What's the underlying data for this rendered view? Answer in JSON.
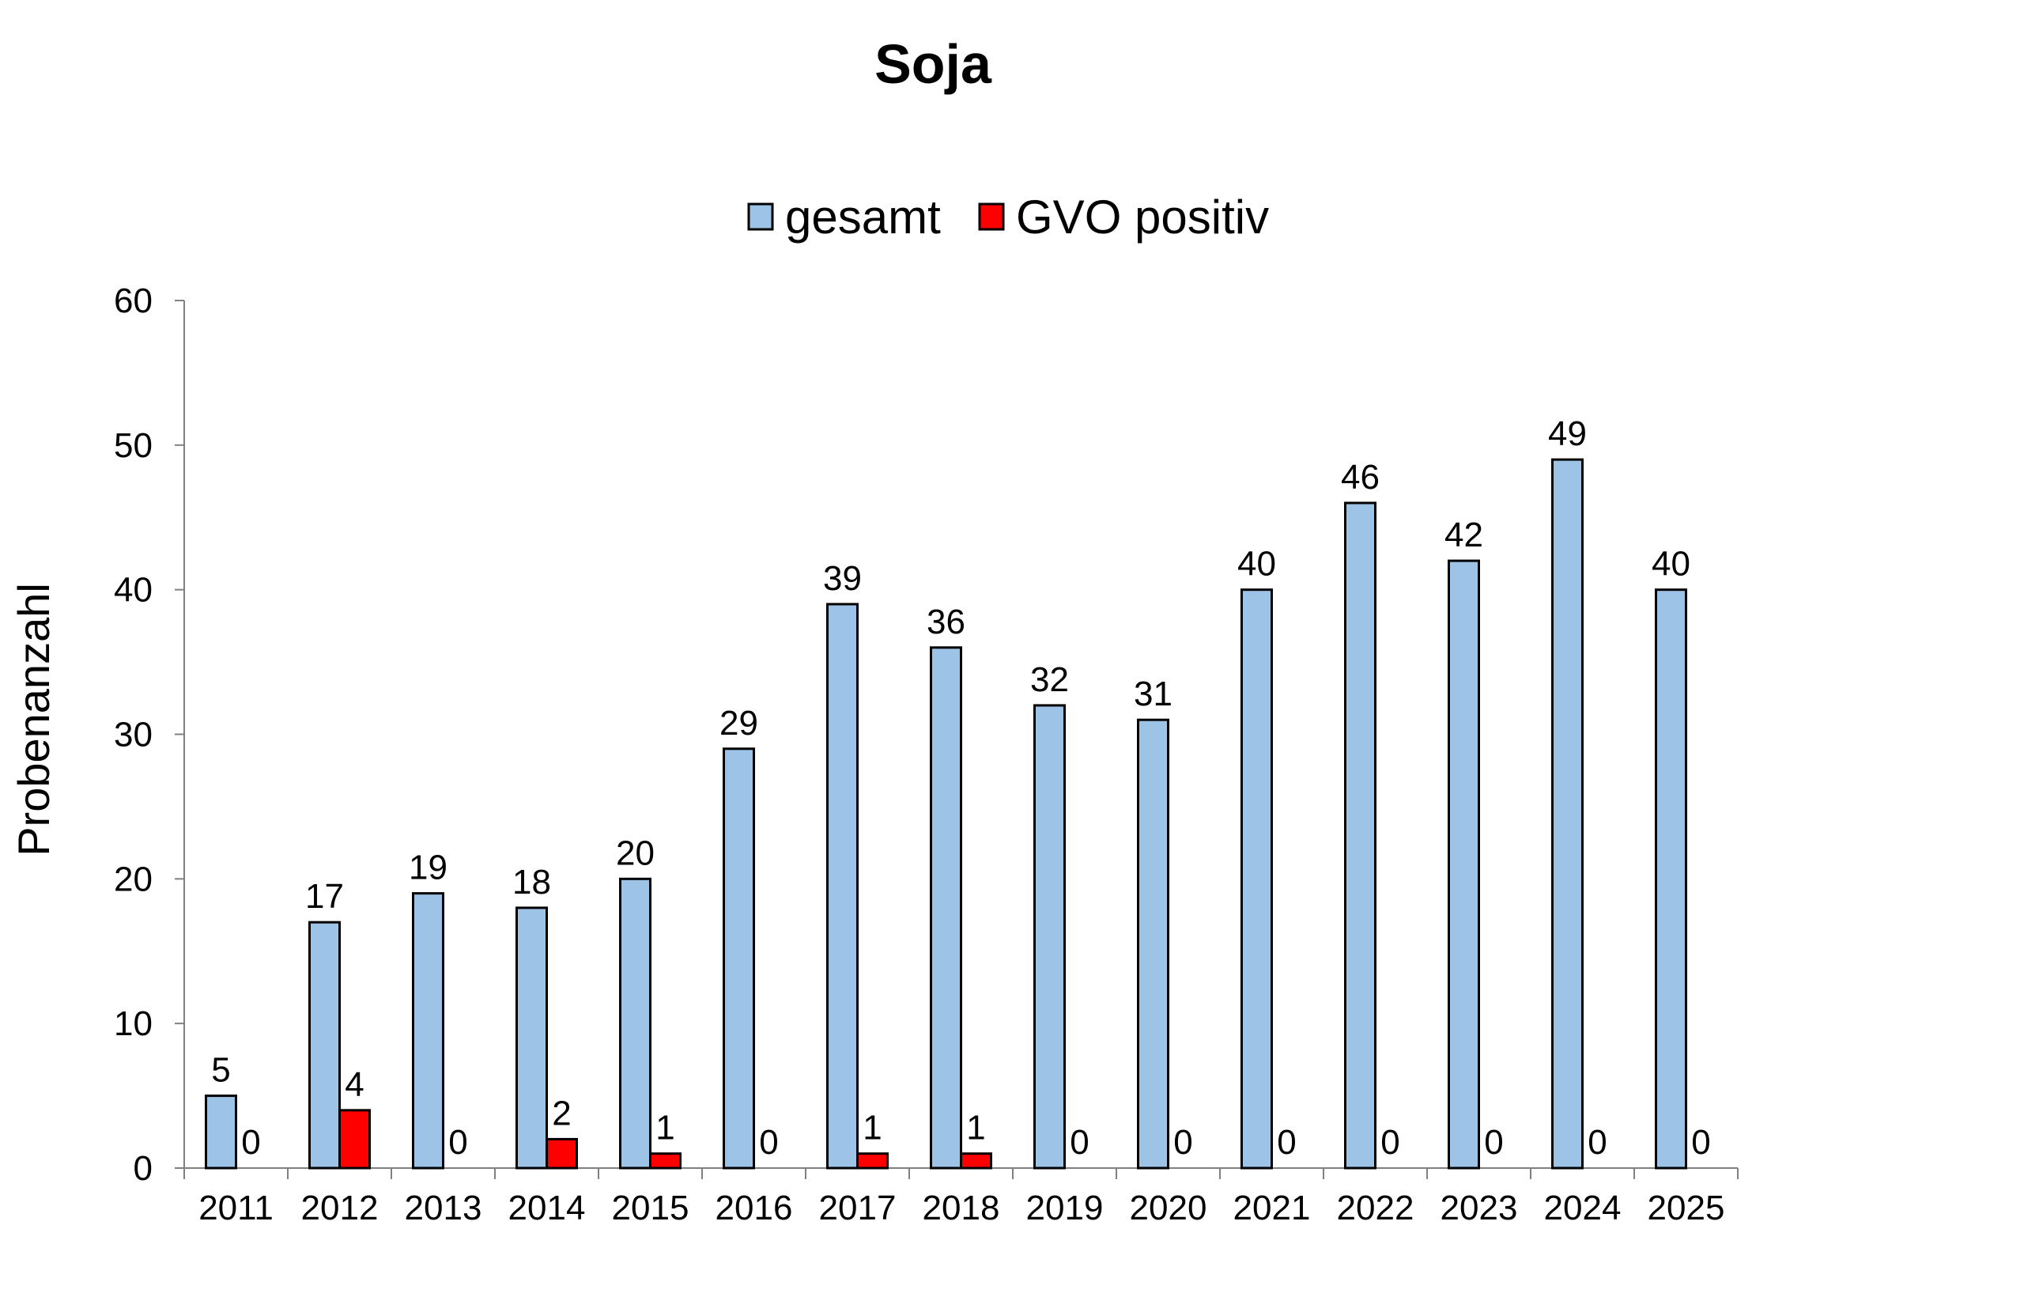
{
  "chart_data": {
    "type": "bar",
    "title": "Soja",
    "xlabel": "",
    "ylabel": "Probenanzahl",
    "ylim": [
      0,
      60
    ],
    "yticks": [
      0,
      10,
      20,
      30,
      40,
      50,
      60
    ],
    "legend_position": "top-center",
    "grid": false,
    "categories": [
      "2011",
      "2012",
      "2013",
      "2014",
      "2015",
      "2016",
      "2017",
      "2018",
      "2019",
      "2020",
      "2021",
      "2022",
      "2023",
      "2024",
      "2025"
    ],
    "series": [
      {
        "name": "gesamt",
        "color": "#9dc3e6",
        "values": [
          5,
          17,
          19,
          18,
          20,
          29,
          39,
          36,
          32,
          31,
          40,
          46,
          42,
          49,
          40
        ]
      },
      {
        "name": "GVO positiv",
        "color": "#ff0000",
        "values": [
          0,
          4,
          0,
          2,
          1,
          0,
          1,
          1,
          0,
          0,
          0,
          0,
          0,
          0,
          0
        ]
      }
    ]
  }
}
